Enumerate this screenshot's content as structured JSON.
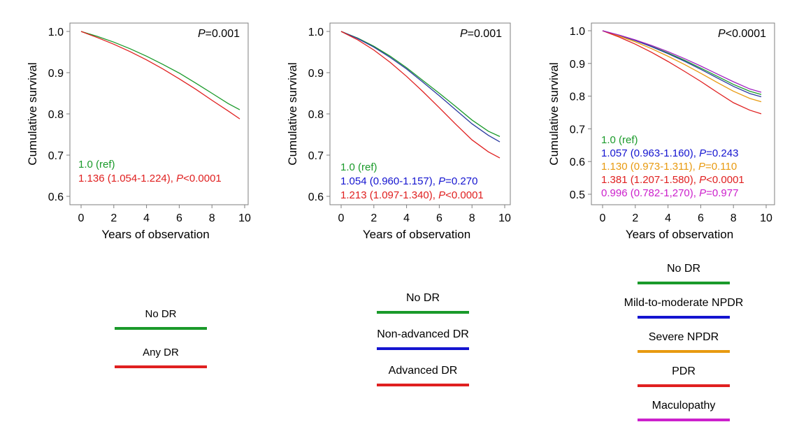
{
  "chart_data": [
    {
      "type": "line",
      "ylabel": "Cumulative survival",
      "xlabel": "Years of observation",
      "xlim": [
        0,
        10
      ],
      "ylim": [
        0.6,
        1.0
      ],
      "xticks": [
        "0",
        "2",
        "4",
        "6",
        "8",
        "10"
      ],
      "yticks": [
        "0.6",
        "0.7",
        "0.8",
        "0.9",
        "1.0"
      ],
      "pvalue": {
        "italic": "P",
        "rest": "=0.001"
      },
      "series": [
        {
          "name": "No DR",
          "color": "#1a9a2a",
          "x": [
            0,
            1,
            2,
            3,
            4,
            5,
            6,
            7,
            8,
            9,
            9.7
          ],
          "y": [
            1.0,
            0.988,
            0.974,
            0.958,
            0.94,
            0.92,
            0.899,
            0.875,
            0.85,
            0.825,
            0.81
          ]
        },
        {
          "name": "Any DR",
          "color": "#e02020",
          "x": [
            0,
            1,
            2,
            3,
            4,
            5,
            6,
            7,
            8,
            9,
            9.7
          ],
          "y": [
            1.0,
            0.985,
            0.969,
            0.951,
            0.931,
            0.909,
            0.885,
            0.86,
            0.833,
            0.807,
            0.788
          ]
        }
      ],
      "annotations": [
        {
          "color": "#1a9a2a",
          "text": "1.0 (ref)"
        },
        {
          "color": "#e02020",
          "text": "1.136 (1.054-1.224), ",
          "italic": "P",
          "rest": "<0.0001"
        }
      ],
      "legend": {
        "items": [
          {
            "label": "No DR",
            "color": "#1a9a2a"
          },
          {
            "label": "Any DR",
            "color": "#e02020"
          }
        ]
      }
    },
    {
      "type": "line",
      "ylabel": "Cumulative survival",
      "xlabel": "Years of observation",
      "xlim": [
        0,
        10
      ],
      "ylim": [
        0.6,
        1.0
      ],
      "xticks": [
        "0",
        "2",
        "4",
        "6",
        "8",
        "10"
      ],
      "yticks": [
        "0.6",
        "0.7",
        "0.8",
        "0.9",
        "1.0"
      ],
      "pvalue": {
        "italic": "P",
        "rest": "=0.001"
      },
      "series": [
        {
          "name": "No DR",
          "color": "#1a9a2a",
          "x": [
            0,
            1,
            2,
            3,
            4,
            5,
            6,
            7,
            8,
            9,
            9.7
          ],
          "y": [
            1.0,
            0.984,
            0.964,
            0.94,
            0.912,
            0.881,
            0.85,
            0.818,
            0.785,
            0.758,
            0.745
          ]
        },
        {
          "name": "Non-advanced DR",
          "color": "#2a3aa0",
          "x": [
            0,
            1,
            2,
            3,
            4,
            5,
            6,
            7,
            8,
            9,
            9.7
          ],
          "y": [
            1.0,
            0.983,
            0.962,
            0.937,
            0.909,
            0.877,
            0.844,
            0.81,
            0.776,
            0.748,
            0.732
          ]
        },
        {
          "name": "Advanced DR",
          "color": "#e02020",
          "x": [
            0,
            1,
            2,
            3,
            4,
            5,
            6,
            7,
            8,
            9,
            9.7
          ],
          "y": [
            1.0,
            0.98,
            0.955,
            0.925,
            0.891,
            0.854,
            0.815,
            0.775,
            0.737,
            0.708,
            0.693
          ]
        }
      ],
      "annotations": [
        {
          "color": "#1a9a2a",
          "text": "1.0 (ref)"
        },
        {
          "color": "#1414d0",
          "text": "1.054 (0.960-1.157), ",
          "italic": "P",
          "rest": "=0.270"
        },
        {
          "color": "#e02020",
          "text": "1.213 (1.097-1.340), ",
          "italic": "P",
          "rest": "<0.0001"
        }
      ],
      "legend": {
        "items": [
          {
            "label": "No DR",
            "color": "#1a9a2a"
          },
          {
            "label": "Non-advanced DR",
            "color": "#1414d0"
          },
          {
            "label": "Advanced DR",
            "color": "#e02020"
          }
        ]
      }
    },
    {
      "type": "line",
      "ylabel": "Cumulative survival",
      "xlabel": "Years of observation",
      "xlim": [
        0,
        10
      ],
      "ylim": [
        0.5,
        1.0
      ],
      "xticks": [
        "0",
        "2",
        "4",
        "6",
        "8",
        "10"
      ],
      "yticks": [
        "0.5",
        "0.6",
        "0.7",
        "0.8",
        "0.9",
        "1.0"
      ],
      "pvalue": {
        "italic": "P",
        "rest": "<0.0001"
      },
      "series": [
        {
          "name": "No DR",
          "color": "#1a9a2a",
          "x": [
            0,
            1,
            2,
            3,
            4,
            5,
            6,
            7,
            8,
            9,
            9.7
          ],
          "y": [
            1.0,
            0.986,
            0.97,
            0.952,
            0.932,
            0.91,
            0.886,
            0.861,
            0.836,
            0.815,
            0.805
          ]
        },
        {
          "name": "Mild-to-moderate NPDR",
          "color": "#2a3aa0",
          "x": [
            0,
            1,
            2,
            3,
            4,
            5,
            6,
            7,
            8,
            9,
            9.7
          ],
          "y": [
            1.0,
            0.986,
            0.97,
            0.951,
            0.93,
            0.907,
            0.882,
            0.856,
            0.83,
            0.808,
            0.798
          ]
        },
        {
          "name": "Severe NPDR",
          "color": "#e89a10",
          "x": [
            0,
            1,
            2,
            3,
            4,
            5,
            6,
            7,
            8,
            9,
            9.7
          ],
          "y": [
            1.0,
            0.984,
            0.966,
            0.945,
            0.922,
            0.897,
            0.87,
            0.842,
            0.815,
            0.793,
            0.783
          ]
        },
        {
          "name": "PDR",
          "color": "#e02020",
          "x": [
            0,
            1,
            2,
            3,
            4,
            5,
            6,
            7,
            8,
            9,
            9.7
          ],
          "y": [
            1.0,
            0.981,
            0.959,
            0.934,
            0.906,
            0.876,
            0.845,
            0.812,
            0.78,
            0.757,
            0.746
          ]
        },
        {
          "name": "Maculopathy",
          "color": "#a020c0",
          "x": [
            0,
            1,
            2,
            3,
            4,
            5,
            6,
            7,
            8,
            9,
            9.7
          ],
          "y": [
            1.0,
            0.987,
            0.972,
            0.955,
            0.936,
            0.915,
            0.892,
            0.868,
            0.844,
            0.822,
            0.812
          ]
        }
      ],
      "annotations": [
        {
          "color": "#1a9a2a",
          "text": "1.0 (ref)"
        },
        {
          "color": "#1414d0",
          "text": "1.057 (0.963-1.160), ",
          "italic": "P",
          "rest": "=0.243"
        },
        {
          "color": "#e89a10",
          "text": "1.130 (0.973-1.311), ",
          "italic": "P",
          "rest": "=0.110"
        },
        {
          "color": "#e02020",
          "text": "1.381 (1.207-1.580), ",
          "italic": "P",
          "rest": "<0.0001"
        },
        {
          "color": "#cc20cc",
          "text": "0.996 (0.782-1,270), ",
          "italic": "P",
          "rest": "=0.977"
        }
      ],
      "legend": {
        "items": [
          {
            "label": "No DR",
            "color": "#1a9a2a"
          },
          {
            "label": "Mild-to-moderate NPDR",
            "color": "#1414d0"
          },
          {
            "label": "Severe NPDR",
            "color": "#e89a10"
          },
          {
            "label": "PDR",
            "color": "#e02020"
          },
          {
            "label": "Maculopathy",
            "color": "#cc20cc"
          }
        ]
      }
    }
  ]
}
